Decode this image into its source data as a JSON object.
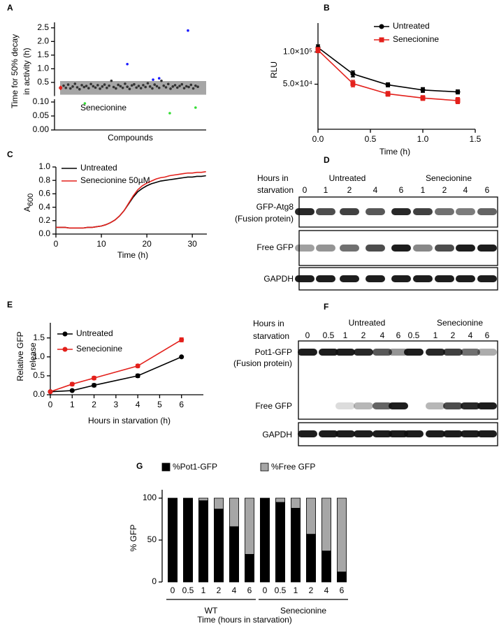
{
  "chart_data": [
    {
      "type": "scatter",
      "label": "A",
      "ylabel": [
        "Time for 50% decay",
        "in activity (h)"
      ],
      "xlabel": "Compounds",
      "xlim": [
        0,
        100
      ],
      "ylim": [
        0,
        2.7
      ],
      "yticks": [
        0.5,
        {
          "value": 1,
          "label": "1.0"
        },
        1.5,
        {
          "value": 2,
          "label": "2.0"
        },
        2.5
      ],
      "ylim_lower": [
        0,
        0.11
      ],
      "yticks_lower": [
        {
          "value": 0,
          "label": "0.00"
        },
        0.05,
        {
          "value": 0.1,
          "label": "0.10"
        }
      ],
      "shaded_band": [
        0.05,
        0.55
      ],
      "annotation": "Senecionine",
      "series": [
        {
          "color": "#333333",
          "x": [
            6,
            7.5,
            9,
            10.5,
            12,
            13.5,
            15,
            16.5,
            18,
            19.5,
            21,
            22.5,
            24,
            25.5,
            27,
            28.5,
            30,
            31.5,
            33,
            34.5,
            36,
            37.5,
            39,
            40.5,
            42,
            43.5,
            45,
            46.5,
            48,
            49.5,
            51,
            52.5,
            54,
            55.5,
            57,
            58.5,
            60,
            61.5,
            63,
            64.5,
            66,
            67.5,
            69,
            70.5,
            72,
            73.5,
            75,
            76.5,
            78,
            79.5,
            81,
            82.5,
            84,
            85.5,
            87,
            88.5,
            90,
            91.5,
            93,
            94.5
          ],
          "values": [
            0.38,
            0.3,
            0.42,
            0.28,
            0.35,
            0.45,
            0.32,
            0.25,
            0.4,
            0.33,
            0.37,
            0.29,
            0.44,
            0.36,
            0.31,
            0.4,
            0.27,
            0.35,
            0.42,
            0.3,
            0.38,
            0.56,
            0.33,
            0.28,
            0.41,
            0.36,
            0.3,
            0.45,
            0.34,
            0.26,
            0.39,
            0.43,
            0.31,
            0.37,
            0.29,
            0.4,
            0.33,
            0.47,
            0.35,
            0.28,
            0.42,
            0.36,
            0.3,
            0.56,
            0.38,
            0.32,
            0.44,
            0.27,
            0.35,
            0.4,
            0.31,
            0.37,
            0.43,
            0.29,
            0.36,
            0.33,
            0.41,
            0.28,
            0.38,
            0.34
          ]
        },
        {
          "color": "#e3201b",
          "x": [
            4
          ],
          "values": [
            0.3
          ],
          "errors": [
            0.08
          ]
        },
        {
          "color": "#1a1aff",
          "x": [
            48,
            65,
            69,
            88
          ],
          "values": [
            1.17,
            0.6,
            0.65,
            2.4
          ]
        },
        {
          "color": "#33dd33",
          "x": [
            20,
            76,
            93
          ],
          "values": [
            0.095,
            0.06,
            0.08
          ]
        }
      ]
    },
    {
      "type": "line",
      "label": "B",
      "ylabel": "RLU",
      "xlabel": "Time (h)",
      "xlim": [
        0,
        1.5
      ],
      "ylim": [
        -20000,
        145000
      ],
      "xticks": [
        {
          "value": 0,
          "label": "0.0"
        },
        0.5,
        {
          "value": 1,
          "label": "1.0"
        },
        1.5
      ],
      "yticks": [
        {
          "value": 50000,
          "label": "5.0×10⁴"
        },
        {
          "value": 100000,
          "label": "1.0×10⁵"
        }
      ],
      "x": [
        0,
        0.333,
        0.667,
        1.0,
        1.333
      ],
      "series": [
        {
          "name": "Untreated",
          "color": "#000000",
          "marker": "circle",
          "values": [
            107000,
            66000,
            49000,
            41000,
            38000
          ],
          "errors": [
            4000,
            4500,
            3000,
            3500,
            3000
          ]
        },
        {
          "name": "Senecionine",
          "color": "#e3201b",
          "marker": "square",
          "values": [
            103000,
            51000,
            35000,
            28500,
            24500
          ],
          "errors": [
            4000,
            5000,
            3500,
            3500,
            4500
          ]
        }
      ]
    },
    {
      "type": "line",
      "label": "C",
      "ylabel": "A",
      "ylabel_subscript": "600",
      "xlabel": "Time (h)",
      "xlim": [
        0,
        33.2
      ],
      "ylim": [
        0,
        1.0
      ],
      "xticks": [
        0,
        10,
        20,
        30
      ],
      "yticks": [
        {
          "value": 0,
          "label": "0.0"
        },
        0.2,
        0.4,
        0.6,
        0.8,
        {
          "value": 1,
          "label": "1.0"
        }
      ],
      "x": [
        0,
        1,
        2,
        3,
        4,
        5,
        6,
        7,
        8,
        9,
        10,
        11,
        12,
        13,
        14,
        15,
        16,
        17,
        18,
        19,
        20,
        21,
        22,
        23,
        24,
        25,
        26,
        27,
        28,
        29,
        30,
        31,
        32,
        33
      ],
      "series": [
        {
          "name": "Untreated",
          "color": "#000000",
          "values": [
            0.1,
            0.1,
            0.1,
            0.09,
            0.09,
            0.09,
            0.09,
            0.1,
            0.1,
            0.11,
            0.12,
            0.14,
            0.17,
            0.21,
            0.27,
            0.35,
            0.45,
            0.55,
            0.63,
            0.68,
            0.72,
            0.75,
            0.77,
            0.79,
            0.8,
            0.81,
            0.82,
            0.83,
            0.84,
            0.85,
            0.85,
            0.86,
            0.86,
            0.87
          ]
        },
        {
          "name": "Senecionine 50µM",
          "color": "#e3201b",
          "values": [
            0.1,
            0.1,
            0.1,
            0.09,
            0.09,
            0.09,
            0.09,
            0.1,
            0.1,
            0.11,
            0.12,
            0.14,
            0.17,
            0.21,
            0.27,
            0.35,
            0.46,
            0.57,
            0.66,
            0.72,
            0.76,
            0.79,
            0.82,
            0.84,
            0.85,
            0.87,
            0.88,
            0.89,
            0.9,
            0.91,
            0.91,
            0.92,
            0.92,
            0.93
          ]
        }
      ]
    },
    {
      "type": "line",
      "label": "E",
      "ylabel": [
        "Relative GFP",
        "release"
      ],
      "xlabel": "Hours in starvation (h)",
      "xlim": [
        0,
        7
      ],
      "ylim": [
        0,
        1.9
      ],
      "xticks": [
        0,
        1,
        2,
        3,
        4,
        5,
        6
      ],
      "yticks": [
        {
          "value": 0,
          "label": "0.0"
        },
        0.5,
        {
          "value": 1,
          "label": "1.0"
        },
        1.5
      ],
      "x": [
        0,
        1,
        2,
        4,
        6
      ],
      "series": [
        {
          "name": "Untreated",
          "color": "#000000",
          "marker": "circle",
          "values": [
            0.08,
            0.11,
            0.25,
            0.5,
            1.0
          ],
          "errors": [
            0.02,
            0.02,
            0.04,
            0.04,
            0.01
          ]
        },
        {
          "name": "Senecionine",
          "color": "#e3201b",
          "marker": "circle",
          "values": [
            0.08,
            0.28,
            0.44,
            0.76,
            1.45
          ],
          "errors": [
            0.02,
            0.04,
            0.04,
            0.04,
            0.05
          ]
        }
      ]
    },
    {
      "type": "bar",
      "label": "G",
      "ylabel": "% GFP",
      "xlabel": "Time (hours in starvation)",
      "ylim": [
        0,
        110
      ],
      "yticks": [
        0,
        50,
        100
      ],
      "categories": [
        "0",
        "0.5",
        "1",
        "2",
        "4",
        "6",
        "0",
        "0.5",
        "1",
        "2",
        "4",
        "6"
      ],
      "groups": [
        "WT",
        "Senecionine"
      ],
      "series": [
        {
          "name": "%Pot1-GFP",
          "color": "#000000",
          "values": [
            100,
            100,
            97,
            87,
            66,
            33,
            100,
            95,
            88,
            57,
            37,
            12
          ]
        },
        {
          "name": "%Free GFP",
          "color": "#a6a6a6",
          "values": [
            0,
            0,
            3,
            13,
            34,
            67,
            0,
            5,
            12,
            43,
            63,
            88
          ]
        }
      ]
    }
  ],
  "blots": [
    {
      "label": "D",
      "header": [
        "Hours in",
        "starvation"
      ],
      "groups": [
        "Untreated",
        "Senecionine"
      ],
      "lanes": [
        "0",
        "1",
        "2",
        "4",
        "6",
        "1",
        "2",
        "4",
        "6"
      ],
      "rows": [
        [
          "GFP-Atg8",
          "(Fusion protein)"
        ],
        [
          "Free GFP"
        ],
        [
          "GAPDH"
        ]
      ]
    },
    {
      "label": "F",
      "header": [
        "Hours in",
        "starvation"
      ],
      "groups": [
        "Untreated",
        "Senecionine"
      ],
      "lanes": [
        "0",
        "0.5",
        "1",
        "2",
        "4",
        "6",
        "0.5",
        "1",
        "2",
        "4",
        "6"
      ],
      "rows": [
        [
          "Pot1-GFP",
          "(Fusion protein)"
        ],
        [
          "Free GFP"
        ],
        [
          "GAPDH"
        ]
      ]
    }
  ]
}
